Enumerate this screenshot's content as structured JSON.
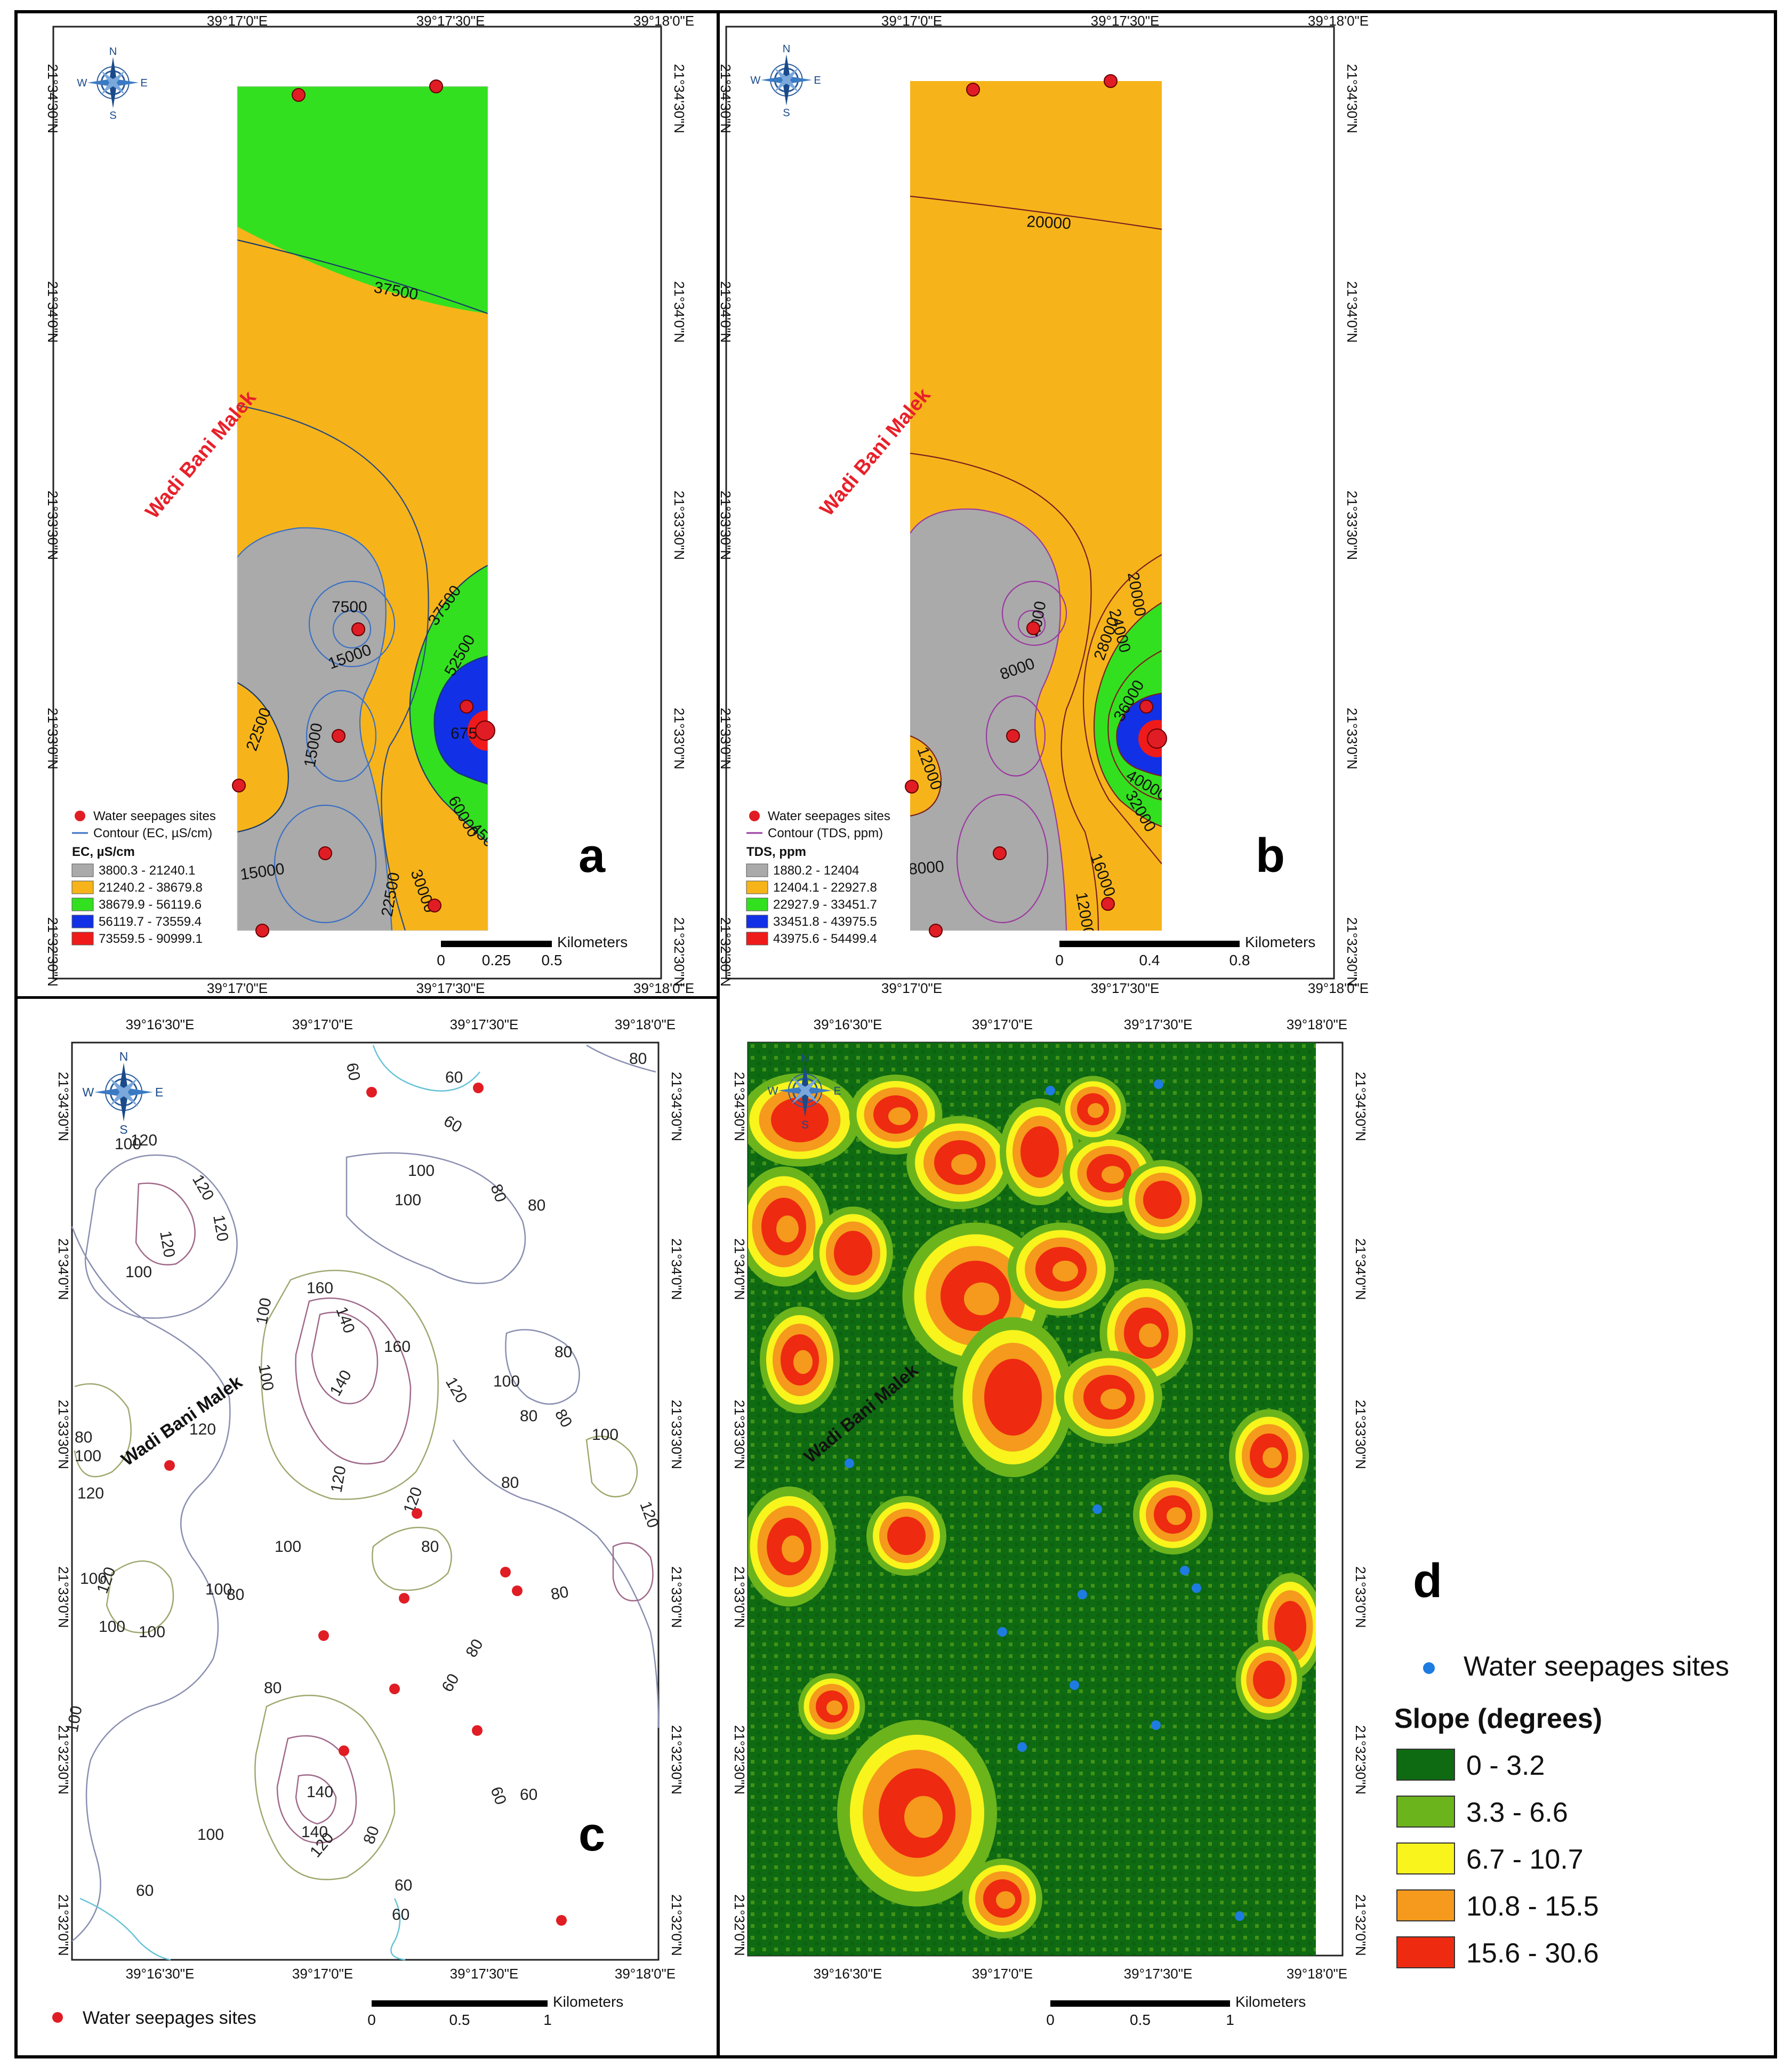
{
  "panels": [
    {
      "id": "a",
      "letter": "a",
      "place_label": "Wadi Bani Malek",
      "x_ticks": [
        "39°17'0\"E",
        "39°17'30\"E",
        "39°18'0\"E"
      ],
      "y_ticks": [
        "21°34'30\"N",
        "21°34'0\"N",
        "21°33'30\"N",
        "21°33'0\"N",
        "21°32'30\"N"
      ],
      "legend": {
        "seepage_label": "Water seepages sites",
        "contour_label": "Contour (EC, µS/cm)",
        "title": "EC, µS/cm",
        "classes": [
          {
            "label": "3800.3 - 21240.1",
            "color": "#aaaaaa"
          },
          {
            "label": "21240.2 - 38679.8",
            "color": "#f6b41a"
          },
          {
            "label": "38679.9 - 56119.6",
            "color": "#33e01f"
          },
          {
            "label": "56119.7 - 73559.4",
            "color": "#1230e6"
          },
          {
            "label": "73559.5 - 90999.1",
            "color": "#ef1a1a"
          }
        ]
      },
      "contour_labels": [
        "37500",
        "7500",
        "15000",
        "37500",
        "52500",
        "67500",
        "15000",
        "22500",
        "60000",
        "45000",
        "15000",
        "30000",
        "22500"
      ],
      "scalebar": {
        "unit": "Kilometers",
        "ticks": [
          "0",
          "0.25",
          "0.5"
        ]
      }
    },
    {
      "id": "b",
      "letter": "b",
      "place_label": "Wadi Bani Malek",
      "x_ticks": [
        "39°17'0\"E",
        "39°17'30\"E",
        "39°18'0\"E"
      ],
      "y_ticks": [
        "21°34'30\"N",
        "21°34'0\"N",
        "21°33'30\"N",
        "21°33'0\"N",
        "21°32'30\"N"
      ],
      "legend": {
        "seepage_label": "Water seepages sites",
        "contour_label": "Contour (TDS, ppm)",
        "title": "TDS, ppm",
        "classes": [
          {
            "label": "1880.2 - 12404",
            "color": "#aaaaaa"
          },
          {
            "label": "12404.1 - 22927.8",
            "color": "#f6b41a"
          },
          {
            "label": "22927.9 - 33451.7",
            "color": "#33e01f"
          },
          {
            "label": "33451.8 - 43975.5",
            "color": "#1230e6"
          },
          {
            "label": "43975.6 - 54499.4",
            "color": "#ef1a1a"
          }
        ]
      },
      "contour_labels": [
        "20000",
        "20000",
        "4000",
        "24000",
        "8000",
        "28000",
        "36000",
        "12000",
        "40000",
        "32000",
        "8000",
        "16000",
        "12000"
      ],
      "scalebar": {
        "unit": "Kilometers",
        "ticks": [
          "0",
          "0.4",
          "0.8"
        ]
      }
    },
    {
      "id": "c",
      "letter": "c",
      "place_label": "Wadi Bani Malek",
      "x_ticks": [
        "39°16'30\"E",
        "39°17'0\"E",
        "39°17'30\"E",
        "39°18'0\"E"
      ],
      "y_ticks": [
        "21°34'30\"N",
        "21°34'0\"N",
        "21°33'30\"N",
        "21°33'0\"N",
        "21°32'30\"N",
        "21°32'0\"N"
      ],
      "legend": {
        "seepage_label": "Water seepages sites"
      },
      "contour_labels": [
        "60",
        "60",
        "60",
        "80",
        "100",
        "120",
        "120",
        "120",
        "100",
        "80",
        "80",
        "100",
        "120",
        "100",
        "160",
        "140",
        "160",
        "100",
        "140",
        "100",
        "120",
        "100",
        "80",
        "80",
        "120",
        "80",
        "100",
        "80",
        "100",
        "120",
        "120",
        "80",
        "120",
        "100",
        "80",
        "120",
        "80",
        "100",
        "80",
        "100",
        "120",
        "100",
        "100",
        "80",
        "80",
        "60",
        "100",
        "140",
        "140",
        "120",
        "80",
        "100",
        "60",
        "60",
        "60",
        "60",
        "60"
      ],
      "scalebar": {
        "unit": "Kilometers",
        "ticks": [
          "0",
          "0.5",
          "1"
        ]
      }
    },
    {
      "id": "d",
      "letter": "d",
      "place_label": "Wadi Bani Malek",
      "x_ticks": [
        "39°16'30\"E",
        "39°17'0\"E",
        "39°17'30\"E",
        "39°18'0\"E"
      ],
      "y_ticks": [
        "21°34'30\"N",
        "21°34'0\"N",
        "21°33'30\"N",
        "21°33'0\"N",
        "21°32'30\"N",
        "21°32'0\"N"
      ],
      "legend": {
        "seepage_label": "Water seepages sites",
        "title": "Slope (degrees)",
        "classes": [
          {
            "label": "0 - 3.2",
            "color": "#0e6b12"
          },
          {
            "label": "3.3 - 6.6",
            "color": "#6cb41c"
          },
          {
            "label": "6.7 - 10.7",
            "color": "#f8f41c"
          },
          {
            "label": "10.8 - 15.5",
            "color": "#f59a1c"
          },
          {
            "label": "15.6 - 30.6",
            "color": "#ee2a10"
          }
        ]
      },
      "scalebar": {
        "unit": "Kilometers",
        "ticks": [
          "0",
          "0.5",
          "1"
        ]
      }
    }
  ],
  "compass": {
    "n": "N",
    "s": "S",
    "e": "E",
    "w": "W"
  },
  "colors": {
    "seepage_red": "#e01d25",
    "seepage_blue": "#1e7be0",
    "place_label_red": "#e8202a",
    "contour_ec": "#3a6fc4",
    "contour_tds": "#9a3aa0",
    "contour_dark": "#333333"
  }
}
